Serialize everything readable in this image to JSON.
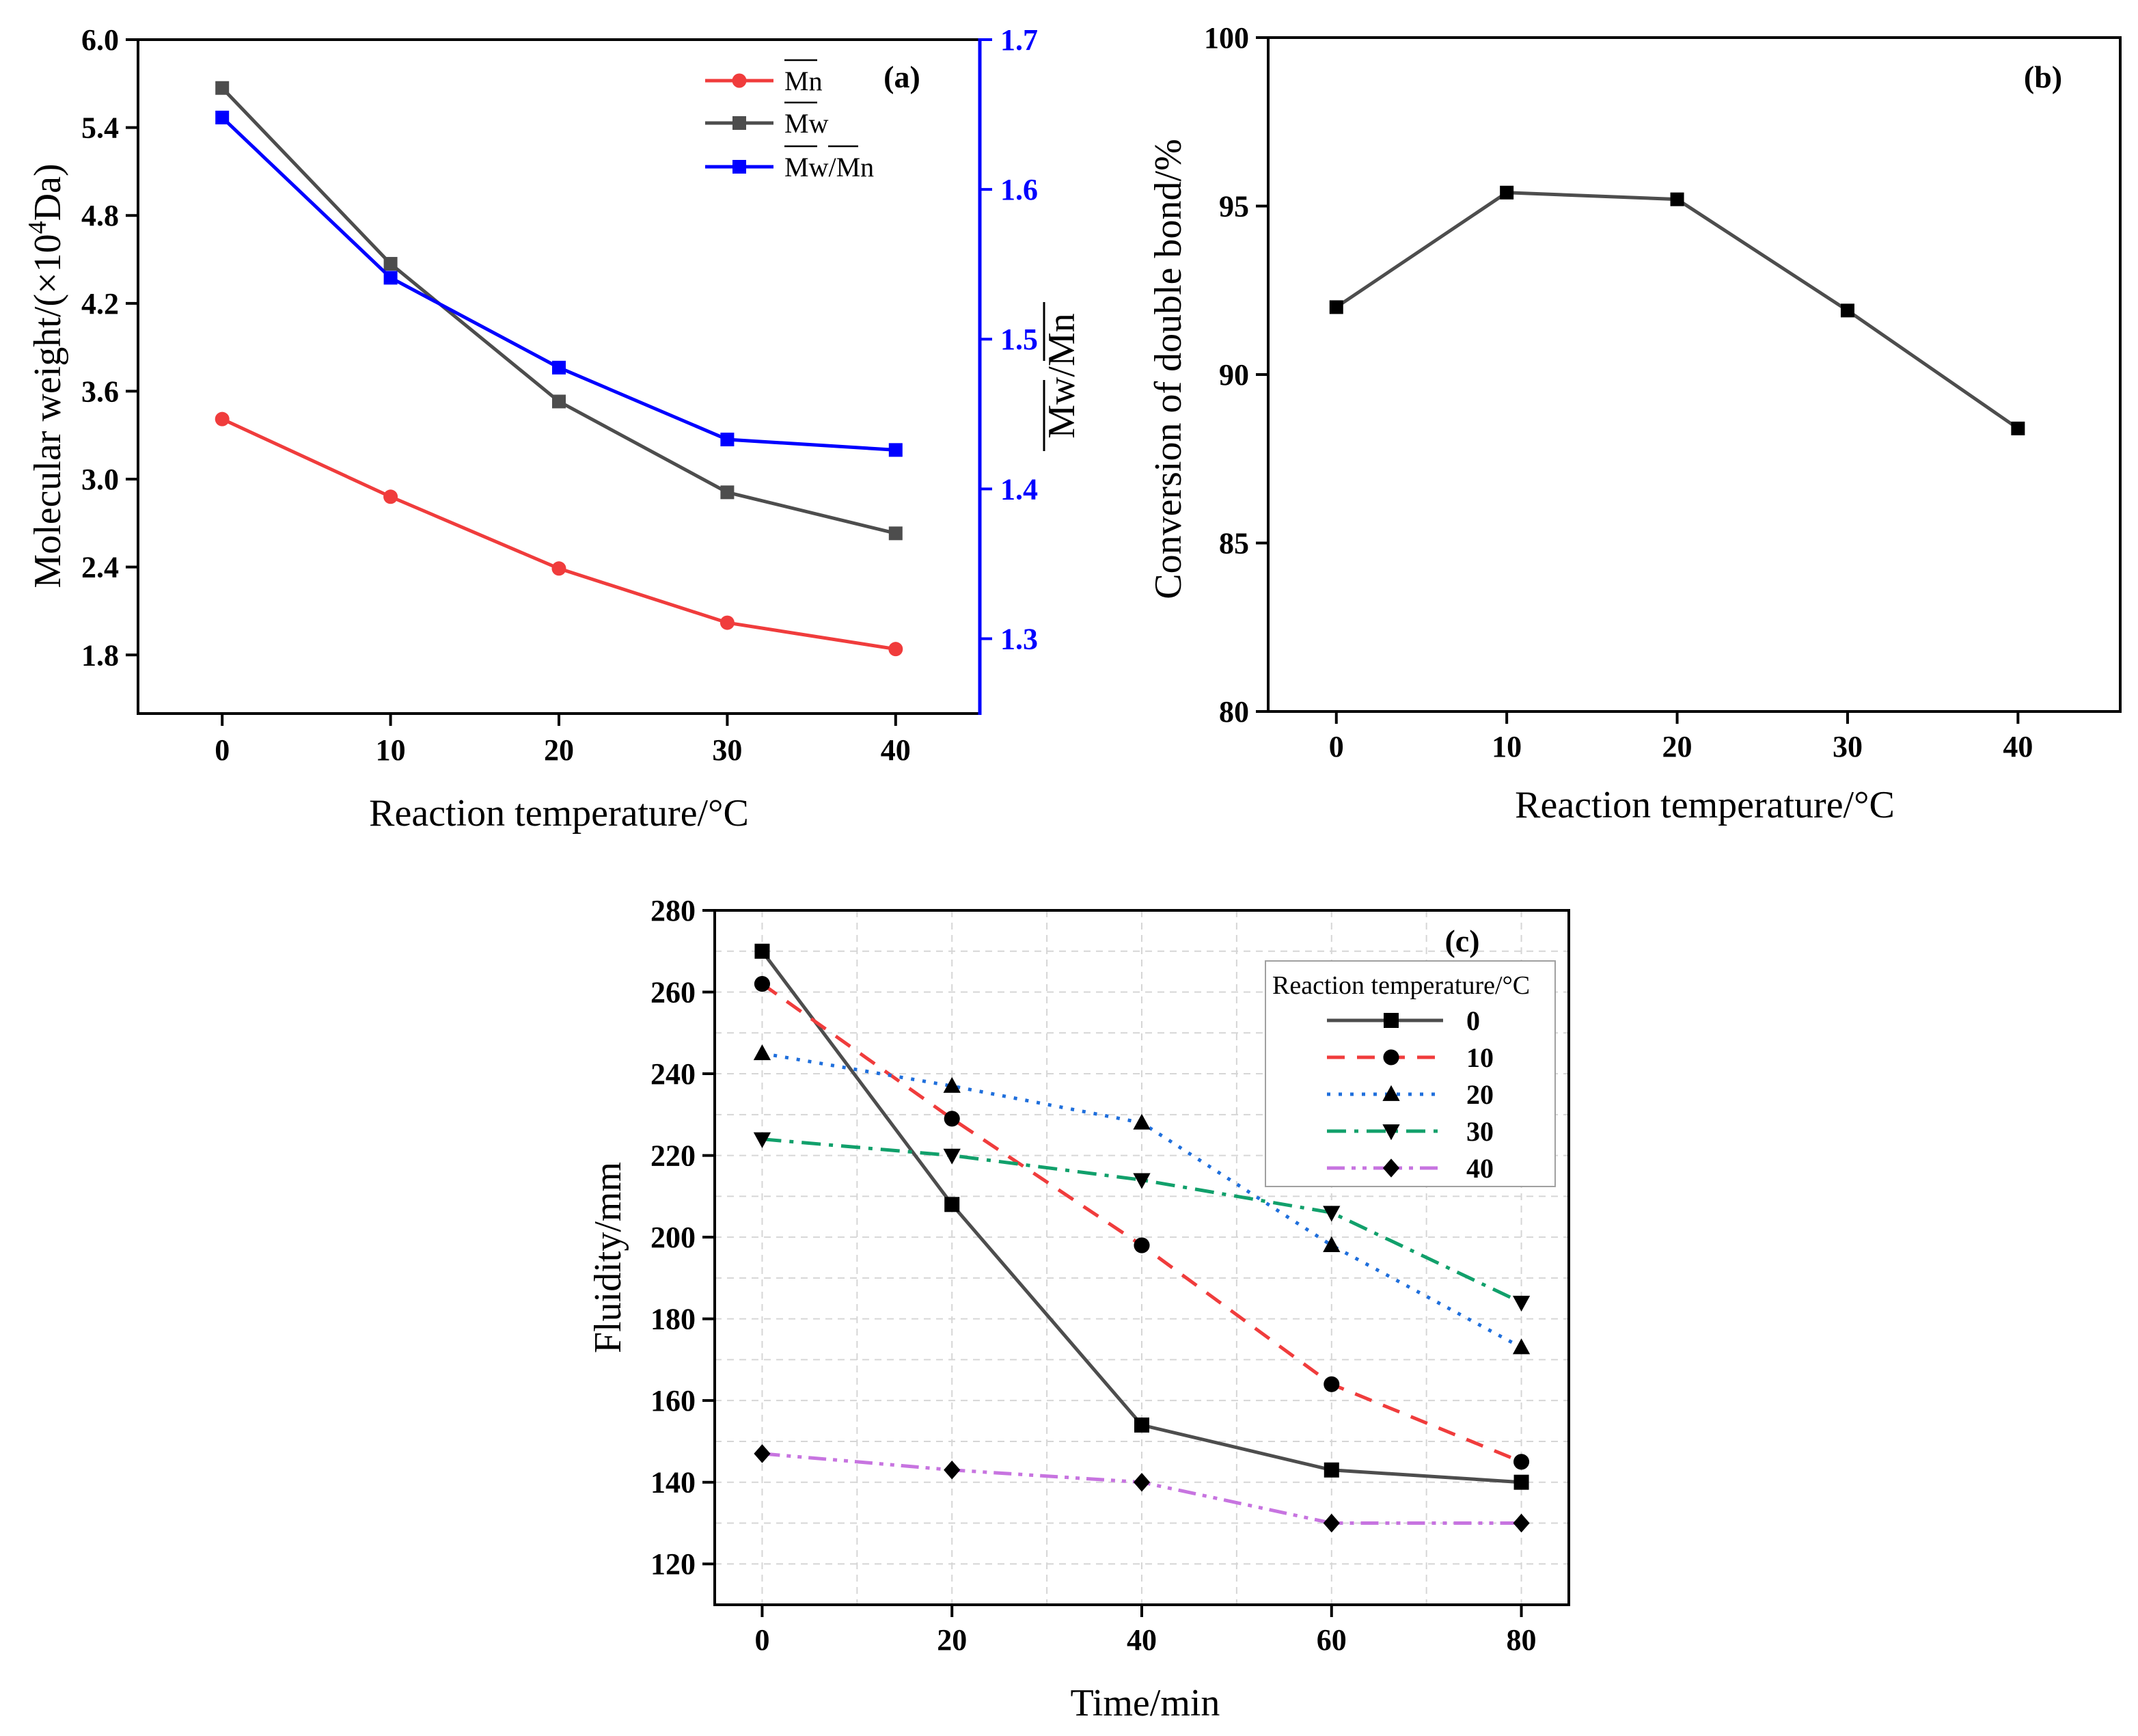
{
  "chart_data": [
    {
      "panel": "(a)",
      "type": "line",
      "x": [
        0,
        10,
        20,
        30,
        40
      ],
      "xticks": [
        "0",
        "10",
        "20",
        "30",
        "40"
      ],
      "xlabel": "Reaction temperature/°C",
      "ylabel_pre": "Molecular weight/(×10",
      "ylabel_sup": "4",
      "ylabel_post": "Da)",
      "y2label": "Mw/Mn",
      "xlim": [
        -5,
        45
      ],
      "ylim": [
        1.4,
        6.0
      ],
      "y2lim": [
        1.25,
        1.7
      ],
      "yticks": [
        "1.8",
        "2.4",
        "3.0",
        "3.6",
        "4.2",
        "4.8",
        "5.4",
        "6.0"
      ],
      "y2ticks": [
        "1.3",
        "1.4",
        "1.5",
        "1.6",
        "1.7"
      ],
      "secondary_axis_color": "#0000ff",
      "series": [
        {
          "name": "Mn",
          "axis": "left",
          "color": "#f03c3c",
          "marker": "circle",
          "values": [
            3.41,
            2.88,
            2.39,
            2.02,
            1.84
          ]
        },
        {
          "name": "Mw",
          "axis": "left",
          "color": "#4d4d4d",
          "marker": "square",
          "values": [
            5.67,
            4.47,
            3.53,
            2.91,
            2.63
          ]
        },
        {
          "name": "Mw/Mn",
          "axis": "right",
          "color": "#0000ff",
          "marker": "square",
          "values": [
            1.648,
            1.541,
            1.481,
            1.433,
            1.426
          ]
        }
      ],
      "legend": "top-right"
    },
    {
      "panel": "(b)",
      "type": "line",
      "x": [
        0,
        10,
        20,
        30,
        40
      ],
      "xticks": [
        "0",
        "10",
        "20",
        "30",
        "40"
      ],
      "xlabel": "Reaction temperature/°C",
      "ylabel": "Conversion of double bond/%",
      "xlim": [
        -4,
        46
      ],
      "ylim": [
        80,
        100
      ],
      "yticks": [
        "80",
        "85",
        "90",
        "95",
        "100"
      ],
      "series": [
        {
          "color": "#4d4d4d",
          "marker": "square",
          "values": [
            92.0,
            95.4,
            95.2,
            91.9,
            88.4
          ]
        }
      ]
    },
    {
      "panel": "(c)",
      "type": "line",
      "x": [
        0,
        20,
        40,
        60,
        80
      ],
      "xticks": [
        "0",
        "20",
        "40",
        "60",
        "80"
      ],
      "xlabel": "Time/min",
      "ylabel": "Fluidity/mm",
      "xlim": [
        -5,
        85
      ],
      "ylim": [
        110,
        280
      ],
      "yticks": [
        "120",
        "140",
        "160",
        "180",
        "200",
        "220",
        "240",
        "260",
        "280"
      ],
      "grid": true,
      "legend": "top-right",
      "legend_title": "Reaction temperature/°C",
      "series": [
        {
          "name": "0",
          "color": "#4d4d4d",
          "dash": "solid",
          "marker": "square",
          "values": [
            270,
            208,
            154,
            143,
            140
          ]
        },
        {
          "name": "10",
          "color": "#f03c3c",
          "dash": "dash",
          "marker": "circle",
          "values": [
            262,
            229,
            198,
            164,
            145
          ]
        },
        {
          "name": "20",
          "color": "#1f6fdc",
          "dash": "dot",
          "marker": "triangle-up",
          "values": [
            245,
            237,
            228,
            198,
            173
          ]
        },
        {
          "name": "30",
          "color": "#11a06b",
          "dash": "dashdot",
          "marker": "triangle-down",
          "values": [
            224,
            220,
            214,
            206,
            184
          ]
        },
        {
          "name": "40",
          "color": "#c774e0",
          "dash": "dashdotdot",
          "marker": "diamond",
          "values": [
            147,
            143,
            140,
            130,
            130
          ]
        }
      ]
    }
  ]
}
